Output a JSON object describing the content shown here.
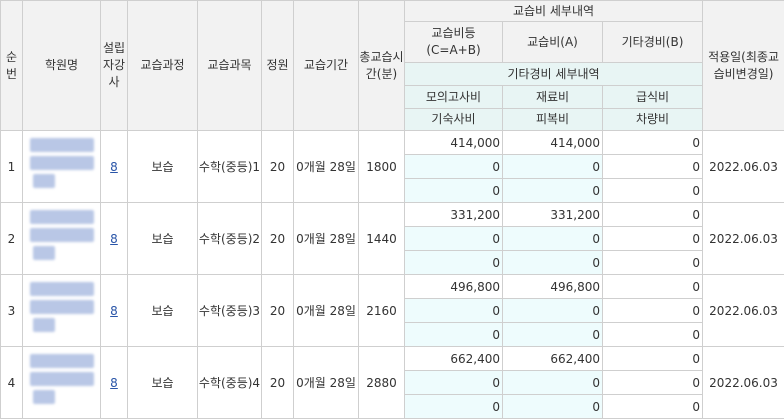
{
  "headers": {
    "seq": "순번",
    "academy": "학원명",
    "founder": "설립자강사",
    "course": "교습과정",
    "subject": "교습과목",
    "capacity": "정원",
    "period": "교습기간",
    "total_hours": "총교습시간(분)",
    "fee_detail": "교습비 세부내역",
    "fee_total": "교습비등(C=A+B)",
    "fee_a": "교습비(A)",
    "fee_b": "기타경비(B)",
    "other_detail": "기타경비 세부내역",
    "mock_exam": "모의고사비",
    "material": "재료비",
    "meal": "급식비",
    "dorm": "기숙사비",
    "uniform": "피복비",
    "vehicle": "차량비",
    "apply_date": "적용일(최종교습비변경일)"
  },
  "rows": [
    {
      "seq": "1",
      "teachers": "8",
      "course": "보습",
      "subject": "수학(중등)1",
      "capacity": "20",
      "period": "0개월 28일",
      "hours": "1800",
      "fee_total": "414,000",
      "fee_a": "414,000",
      "fee_b": "0",
      "mid_left": "0",
      "mid_mid": "0",
      "mid_right": "0",
      "low_left": "0",
      "low_mid": "0",
      "low_right": "0",
      "date": "2022.06.03"
    },
    {
      "seq": "2",
      "teachers": "8",
      "course": "보습",
      "subject": "수학(중등)2",
      "capacity": "20",
      "period": "0개월 28일",
      "hours": "1440",
      "fee_total": "331,200",
      "fee_a": "331,200",
      "fee_b": "0",
      "mid_left": "0",
      "mid_mid": "0",
      "mid_right": "0",
      "low_left": "0",
      "low_mid": "0",
      "low_right": "0",
      "date": "2022.06.03"
    },
    {
      "seq": "3",
      "teachers": "8",
      "course": "보습",
      "subject": "수학(중등)3",
      "capacity": "20",
      "period": "0개월 28일",
      "hours": "2160",
      "fee_total": "496,800",
      "fee_a": "496,800",
      "fee_b": "0",
      "mid_left": "0",
      "mid_mid": "0",
      "mid_right": "0",
      "low_left": "0",
      "low_mid": "0",
      "low_right": "0",
      "date": "2022.06.03"
    },
    {
      "seq": "4",
      "teachers": "8",
      "course": "보습",
      "subject": "수학(중등)4",
      "capacity": "20",
      "period": "0개월 28일",
      "hours": "2880",
      "fee_total": "662,400",
      "fee_a": "662,400",
      "fee_b": "0",
      "mid_left": "0",
      "mid_mid": "0",
      "mid_right": "0",
      "low_left": "0",
      "low_mid": "0",
      "low_right": "0",
      "date": "2022.06.03"
    }
  ],
  "colors": {
    "header_bg": "#f2f2f2",
    "sub_header_bg": "#e8f5f4",
    "cell_highlight": "#eefcfd",
    "link": "#2a55a8"
  }
}
